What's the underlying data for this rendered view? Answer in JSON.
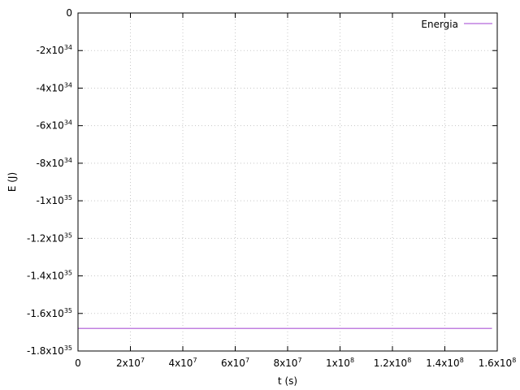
{
  "chart_data": {
    "type": "line",
    "title": "",
    "xlabel": "t (s)",
    "ylabel": "E (J)",
    "xlim": [
      0,
      160000000
    ],
    "ylim": [
      -1.8e+35,
      0
    ],
    "grid": true,
    "legend_position": "top-right",
    "x_ticks": [
      {
        "value": 0,
        "base": "0",
        "exp": ""
      },
      {
        "value": 20000000,
        "base": "2x10",
        "exp": "7"
      },
      {
        "value": 40000000,
        "base": "4x10",
        "exp": "7"
      },
      {
        "value": 60000000,
        "base": "6x10",
        "exp": "7"
      },
      {
        "value": 80000000,
        "base": "8x10",
        "exp": "7"
      },
      {
        "value": 100000000,
        "base": "1x10",
        "exp": "8"
      },
      {
        "value": 120000000,
        "base": "1.2x10",
        "exp": "8"
      },
      {
        "value": 140000000,
        "base": "1.4x10",
        "exp": "8"
      },
      {
        "value": 160000000,
        "base": "1.6x10",
        "exp": "8"
      }
    ],
    "y_ticks": [
      {
        "value": 0,
        "base": "0",
        "exp": ""
      },
      {
        "value": -2e+34,
        "base": "-2x10",
        "exp": "34"
      },
      {
        "value": -4e+34,
        "base": "-4x10",
        "exp": "34"
      },
      {
        "value": -6e+34,
        "base": "-6x10",
        "exp": "34"
      },
      {
        "value": -8e+34,
        "base": "-8x10",
        "exp": "34"
      },
      {
        "value": -1e+35,
        "base": "-1x10",
        "exp": "35"
      },
      {
        "value": -1.2e+35,
        "base": "-1.2x10",
        "exp": "35"
      },
      {
        "value": -1.4e+35,
        "base": "-1.4x10",
        "exp": "35"
      },
      {
        "value": -1.6e+35,
        "base": "-1.6x10",
        "exp": "35"
      },
      {
        "value": -1.8e+35,
        "base": "-1.8x10",
        "exp": "35"
      }
    ],
    "series": [
      {
        "name": "Energia",
        "color": "#c080e0",
        "x": [
          0,
          158000000
        ],
        "y": [
          -1.68e+35,
          -1.68e+35
        ]
      }
    ]
  }
}
